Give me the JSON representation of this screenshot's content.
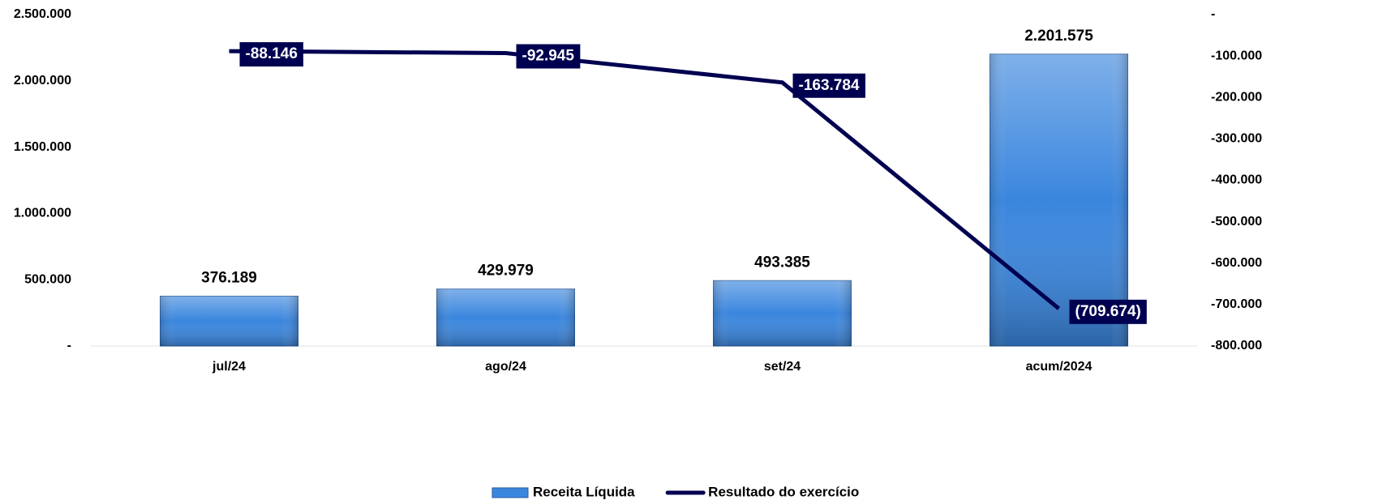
{
  "chart_data": {
    "type": "bar-line",
    "categories": [
      "jul/24",
      "ago/24",
      "set/24",
      "acum/2024"
    ],
    "series": [
      {
        "name": "Receita Líquida",
        "type": "bar",
        "color": "#3a86de",
        "values": [
          376189,
          429979,
          493385,
          2201575
        ],
        "value_labels": [
          "376.189",
          "429.979",
          "493.385",
          "2.201.575"
        ]
      },
      {
        "name": "Resultado do exercício",
        "type": "line",
        "axis": "y2",
        "color": "#000050",
        "values": [
          -88146,
          -92945,
          -163784,
          -709674
        ],
        "value_labels": [
          "-88.146",
          "-92.945",
          "-163.784",
          "(709.674)"
        ]
      }
    ],
    "ylim": [
      0,
      2500000
    ],
    "yticks": [
      {
        "value": 0,
        "label": "-"
      },
      {
        "value": 500000,
        "label": "500.000"
      },
      {
        "value": 1000000,
        "label": "1.000.000"
      },
      {
        "value": 1500000,
        "label": "1.500.000"
      },
      {
        "value": 2000000,
        "label": "2.000.000"
      },
      {
        "value": 2500000,
        "label": "2.500.000"
      }
    ],
    "y2lim": [
      -800000,
      0
    ],
    "y2ticks": [
      {
        "value": 0,
        "label": "-"
      },
      {
        "value": -100000,
        "label": "-100.000"
      },
      {
        "value": -200000,
        "label": "-200.000"
      },
      {
        "value": -300000,
        "label": "-300.000"
      },
      {
        "value": -400000,
        "label": "-400.000"
      },
      {
        "value": -500000,
        "label": "-500.000"
      },
      {
        "value": -600000,
        "label": "-600.000"
      },
      {
        "value": -700000,
        "label": "-700.000"
      },
      {
        "value": -800000,
        "label": "-800.000"
      }
    ],
    "legend": "bottom"
  }
}
